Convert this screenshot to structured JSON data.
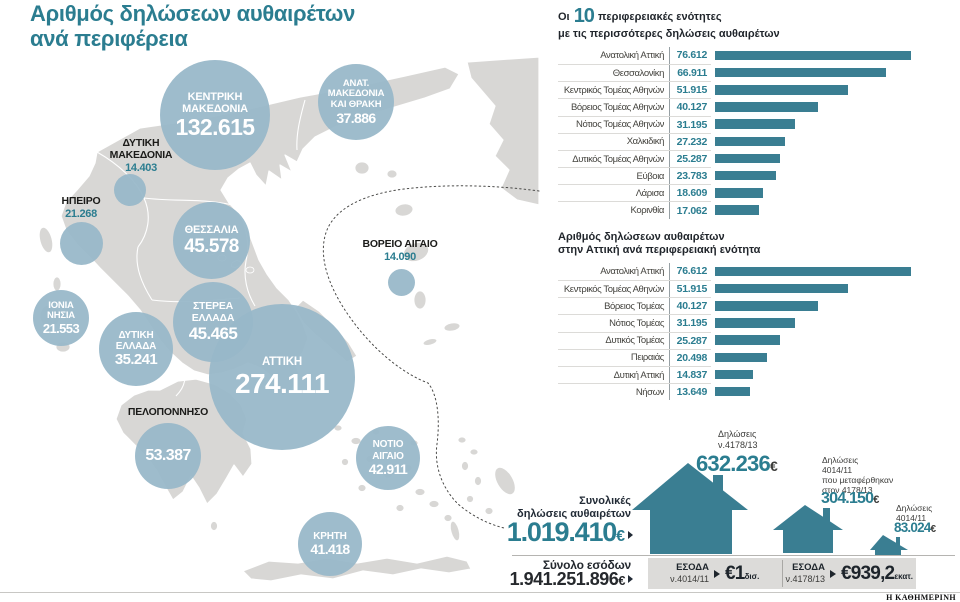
{
  "colors": {
    "teal_accent": "#2b7d90",
    "bubble_fill": "#98b8c9",
    "bar_fill": "#3a7e92",
    "map_land": "#d8d7d5",
    "dark_text": "#222b36",
    "strip_bg": "#dcdbd9"
  },
  "title": {
    "line1": "Αριθμός δηλώσεων αυθαιρέτων",
    "line2": "ανά περιφέρεια"
  },
  "footer": {
    "source": "Η ΚΑΘΗΜΕΡΙΝΗ"
  },
  "chart_data": [
    {
      "type": "bubble-map",
      "name": "declarations-by-region",
      "title": "Αριθμός δηλώσεων αυθαιρέτων ανά περιφέρεια",
      "points": [
        {
          "region": "Κεντρική Μακεδονία",
          "label": "ΚΕΝΤΡΙΚΗ\nΜΑΚΕΔΟΝΙΑ",
          "value": 132615,
          "display": "132.615"
        },
        {
          "region": "Ανατ. Μακεδονία και Θράκη",
          "label": "ΑΝΑΤ.\nΜΑΚΕΔΟΝΙΑ\nΚΑΙ ΘΡΑΚΗ",
          "value": 37886,
          "display": "37.886"
        },
        {
          "region": "Δυτική Μακεδονία",
          "label": "ΔΥΤΙΚΗ\nΜΑΚΕΔΟΝΙΑ",
          "value": 14403,
          "display": "14.403"
        },
        {
          "region": "Ήπειρος",
          "label": "ΗΠΕΙΡΟ",
          "value": 21268,
          "display": "21.268"
        },
        {
          "region": "Θεσσαλία",
          "label": "ΘΕΣΣΑΛΙΑ",
          "value": 45578,
          "display": "45.578"
        },
        {
          "region": "Βόρειο Αιγαίο",
          "label": "ΒΟΡΕΙΟ ΑΙΓΑΙΟ",
          "value": 14090,
          "display": "14.090"
        },
        {
          "region": "Ιόνια Νησιά",
          "label": "ΙΟΝΙΑ\nΝΗΣΙΑ",
          "value": 21553,
          "display": "21.553"
        },
        {
          "region": "Δυτική Ελλάδα",
          "label": "ΔΥΤΙΚΗ\nΕΛΛΑΔΑ",
          "value": 35241,
          "display": "35.241"
        },
        {
          "region": "Στερεά Ελλάδα",
          "label": "ΣΤΕΡΕΑ\nΕΛΛΑΔΑ",
          "value": 45465,
          "display": "45.465"
        },
        {
          "region": "Αττική",
          "label": "ΑΤΤΙΚΗ",
          "value": 274111,
          "display": "274.111"
        },
        {
          "region": "Πελοπόννησος",
          "label": "ΠΕΛΟΠΟΝΝΗΣΟ",
          "value": 53387,
          "display": "53.387"
        },
        {
          "region": "Νότιο Αιγαίο",
          "label": "ΝΟΤΙΟ\nΑΙΓΑΙΟ",
          "value": 42911,
          "display": "42.911"
        },
        {
          "region": "Κρήτη",
          "label": "ΚΡΗΤΗ",
          "value": 41418,
          "display": "41.418"
        }
      ]
    },
    {
      "type": "bar",
      "title": "Οι 10 περιφερειακές ενότητες με τις περισσότερες δηλώσεις αυθαιρέτων",
      "title_prefix": "Οι",
      "title_number": "10",
      "title_suffix": "περιφερειακές ενότητες",
      "title_line2": "με τις περισσότερες δηλώσεις αυθαιρέτων",
      "categories": [
        "Ανατολική Αττική",
        "Θεσσαλονίκη",
        "Κεντρικός Τομέας Αθηνών",
        "Βόρειος Τομέας Αθηνών",
        "Νότιος Τομέας Αθηνών",
        "Χαλκιδική",
        "Δυτικός Τομέας Αθηνών",
        "Εύβοια",
        "Λάρισα",
        "Κορινθία"
      ],
      "values": [
        76612,
        66911,
        51915,
        40127,
        31195,
        27232,
        25287,
        23783,
        18609,
        17062
      ],
      "value_labels": [
        "76.612",
        "66.911",
        "51.915",
        "40.127",
        "31.195",
        "27.232",
        "25.287",
        "23.783",
        "18.609",
        "17.062"
      ],
      "axis_max": 76612,
      "legend": "none",
      "grid": "off"
    },
    {
      "type": "bar",
      "title": "Αριθμός δηλώσεων αυθαιρέτων\nστην Αττική ανά περιφερειακή ενότητα",
      "categories": [
        "Ανατολική Αττική",
        "Κεντρικός Τομέας Αθηνών",
        "Βόρειος Τομέας",
        "Νότιος Τομέας",
        "Δυτικός Τομέας",
        "Πειραιάς",
        "Δυτική Αττική",
        "Νήσων"
      ],
      "values": [
        76612,
        51915,
        40127,
        31195,
        25287,
        20498,
        14837,
        13649
      ],
      "value_labels": [
        "76.612",
        "51.915",
        "40.127",
        "31.195",
        "25.287",
        "20.498",
        "14.837",
        "13.649"
      ],
      "axis_max": 76612,
      "legend": "none",
      "grid": "off"
    },
    {
      "type": "pictogram-summary",
      "total_declarations": {
        "label": "Συνολικές\nδηλώσεις αυθαιρέτων",
        "display": "1.019.410",
        "value": 1019410,
        "unit": "€"
      },
      "total_revenue": {
        "label": "Σύνολο εσόδων",
        "display": "1.941.251.896",
        "value": 1941251896,
        "unit": "€"
      },
      "houses": [
        {
          "label": "Δηλώσεις\nν.4178/13",
          "display": "632.236",
          "value": 632236,
          "unit": "€"
        },
        {
          "label": "Δηλώσεις\n4014/11\nπου μεταφέρθηκαν\nστον 4178/13",
          "display": "304.150",
          "value": 304150,
          "unit": "€"
        },
        {
          "label": "Δηλώσεις\n4014/11",
          "display": "83.024",
          "value": 83024,
          "unit": "€"
        }
      ],
      "revenue_boxes": [
        {
          "label": "ΕΣΟΔΑ",
          "law": "ν.4014/11",
          "amount": "€1",
          "scale": "δισ."
        },
        {
          "label": "ΕΣΟΔΑ",
          "law": "ν.4178/13",
          "amount": "€939,2",
          "scale": "εκατ."
        }
      ]
    }
  ]
}
